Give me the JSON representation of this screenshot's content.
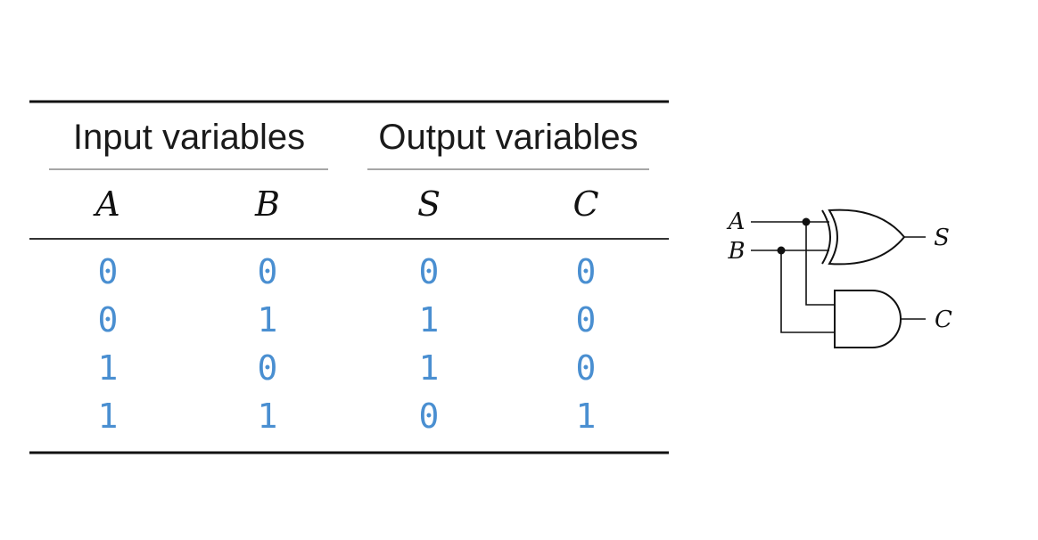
{
  "table": {
    "group_headers": [
      "Input variables",
      "Output variables"
    ],
    "columns": [
      "A",
      "B",
      "S",
      "C"
    ],
    "rows": [
      [
        "0",
        "0",
        "0",
        "0"
      ],
      [
        "0",
        "1",
        "1",
        "0"
      ],
      [
        "1",
        "0",
        "1",
        "0"
      ],
      [
        "1",
        "1",
        "0",
        "1"
      ]
    ]
  },
  "circuit": {
    "inputs": [
      "A",
      "B"
    ],
    "outputs": [
      "S",
      "C"
    ],
    "gates": [
      "xor-gate",
      "and-gate"
    ]
  },
  "colors": {
    "values": "#4a8fd1",
    "ink": "#111111",
    "rule_thin": "#888888"
  }
}
